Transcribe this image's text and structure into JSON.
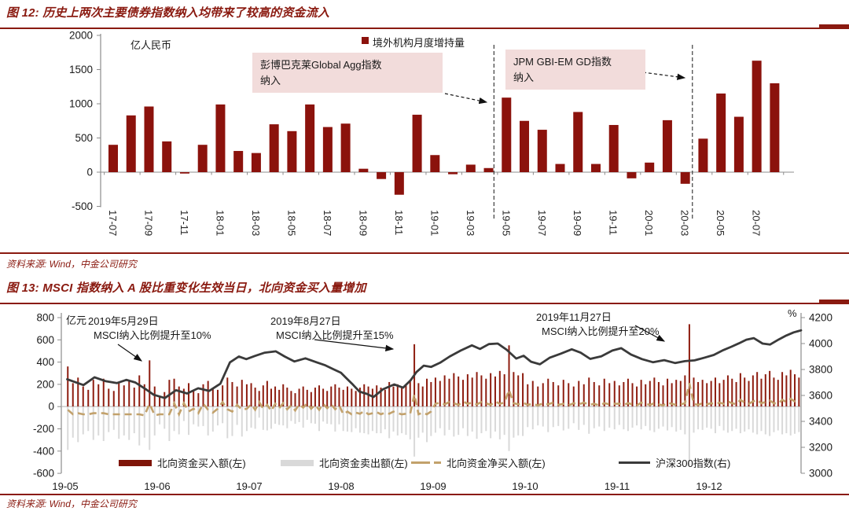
{
  "colors": {
    "accent_red": "#8a1a10",
    "bar_red": "#8b120c",
    "buy_red": "#8e1d10",
    "sell_gray": "#d9d9d9",
    "net_tan": "#c2a16b",
    "index_line": "#3a3a3a",
    "annotation_bg": "#f2dcdb",
    "axis_gray": "#8c8c8c",
    "text_dark": "#1a1a1a"
  },
  "chart_data": [
    {
      "type": "bar",
      "title": "图 12: 历史上两次主要债券指数纳入均带来了较高的资金流入",
      "unit": "亿人民币",
      "legend_label": "境外机构月度增持量",
      "source": "资料来源: Wind，中金公司研究",
      "ylim": [
        -500,
        2000
      ],
      "y_ticks": [
        2000,
        1500,
        1000,
        500,
        0,
        -500
      ],
      "categories": [
        "17-07",
        "17-08",
        "17-09",
        "17-10",
        "17-11",
        "17-12",
        "18-01",
        "18-02",
        "18-03",
        "18-04",
        "18-05",
        "18-06",
        "18-07",
        "18-08",
        "18-09",
        "18-10",
        "18-11",
        "18-12",
        "19-01",
        "19-02",
        "19-03",
        "19-04",
        "19-05",
        "19-06",
        "19-07",
        "19-08",
        "19-09",
        "19-10",
        "19-11",
        "19-12",
        "20-01",
        "20-02",
        "20-03",
        "20-04",
        "20-05",
        "20-06",
        "20-07",
        "20-08"
      ],
      "values": [
        400,
        830,
        960,
        450,
        -20,
        400,
        990,
        310,
        280,
        700,
        600,
        990,
        660,
        710,
        50,
        -100,
        -330,
        840,
        250,
        -30,
        110,
        60,
        1090,
        750,
        620,
        120,
        880,
        120,
        690,
        -90,
        140,
        760,
        -170,
        490,
        1150,
        810,
        1630,
        1300
      ],
      "event_line_index": [
        21.3,
        32.4
      ],
      "annotations": [
        {
          "line1": "彭博巴克莱Global Agg指数",
          "line2": "纳入"
        },
        {
          "line1": "JPM GBI-EM GD指数",
          "line2": "纳入"
        }
      ]
    },
    {
      "type": "combo",
      "title": "图 13: MSCI 指数纳入 A 股比重变化生效当日，北向资金买入量增加",
      "unit_left": "亿元",
      "unit_right": "%",
      "source": "资料来源: Wind，中金公司研究",
      "left_ylim": [
        -600,
        800
      ],
      "right_ylim": [
        3000,
        4200
      ],
      "left_ticks": [
        800,
        600,
        400,
        200,
        0,
        -200,
        -400,
        -600
      ],
      "right_ticks": [
        4200,
        4000,
        3800,
        3600,
        3400,
        3200,
        3000
      ],
      "x_tick_labels": [
        "19-05",
        "19-06",
        "19-07",
        "19-08",
        "19-09",
        "19-10",
        "19-11",
        "19-12"
      ],
      "month_trading_days": [
        18,
        19,
        23,
        22,
        20,
        18,
        21,
        22
      ],
      "legend": [
        {
          "label": "北向资金买入额(左)",
          "style": "bar",
          "color": "#7f1508"
        },
        {
          "label": "北向资金卖出额(左)",
          "style": "bar",
          "color": "#d9d9d9"
        },
        {
          "label": "北向资金净买入额(左)",
          "style": "dash",
          "color": "#c2a16b"
        },
        {
          "label": "沪深300指数(右)",
          "style": "line",
          "color": "#3a3a3a"
        }
      ],
      "annotations": [
        {
          "line1": "2019年5月29日",
          "line2": "MSCI纳入比例提升至10%"
        },
        {
          "line1": "2019年8月27日",
          "line2": "MSCI纳入比例提升至15%"
        },
        {
          "line1": "2019年11月27日",
          "line2": "MSCI纳入比例提升至20%"
        }
      ],
      "series": {
        "buy": [
          360,
          210,
          260,
          180,
          150,
          240,
          200,
          250,
          160,
          140,
          220,
          190,
          230,
          170,
          280,
          200,
          415,
          180,
          90,
          130,
          240,
          250,
          180,
          160,
          210,
          140,
          120,
          200,
          230,
          170,
          150,
          190,
          260,
          220,
          180,
          240,
          200,
          210,
          170,
          140,
          190,
          230,
          160,
          180,
          150,
          200,
          170,
          140,
          120,
          160,
          180,
          150,
          130,
          170,
          190,
          160,
          140,
          180,
          200,
          170,
          150,
          180,
          160,
          140,
          170,
          200,
          180,
          160,
          190,
          170,
          150,
          220,
          180,
          200,
          170,
          190,
          230,
          560,
          210,
          180,
          250,
          220,
          260,
          230,
          280,
          250,
          300,
          270,
          240,
          290,
          260,
          310,
          280,
          250,
          300,
          270,
          320,
          290,
          550,
          310,
          280,
          300,
          200,
          230,
          180,
          210,
          250,
          220,
          190,
          240,
          210,
          180,
          230,
          200,
          260,
          220,
          190,
          250,
          210,
          230,
          190,
          220,
          250,
          210,
          180,
          240,
          200,
          230,
          260,
          220,
          190,
          250,
          210,
          240,
          230,
          280,
          740,
          260,
          220,
          240,
          210,
          230,
          260,
          210,
          240,
          280,
          250,
          220,
          300,
          260,
          230,
          280,
          310,
          250,
          290,
          320,
          260,
          240,
          310,
          280,
          330,
          290,
          260
        ],
        "sell": [
          -390,
          -280,
          -320,
          -250,
          -220,
          -300,
          -260,
          -310,
          -230,
          -210,
          -290,
          -260,
          -300,
          -240,
          -350,
          -280,
          -390,
          -260,
          -160,
          -200,
          -310,
          -220,
          -250,
          -130,
          -255,
          -160,
          -180,
          -175,
          -260,
          -225,
          -170,
          -150,
          -285,
          -265,
          -165,
          -270,
          -220,
          -190,
          -200,
          -100,
          -210,
          -215,
          -200,
          -155,
          -165,
          -170,
          -195,
          -130,
          -155,
          -140,
          -190,
          -120,
          -150,
          -155,
          -220,
          -135,
          -155,
          -160,
          -225,
          -160,
          -220,
          -225,
          -230,
          -195,
          -235,
          -240,
          -250,
          -220,
          -240,
          -240,
          -205,
          -285,
          -225,
          -260,
          -240,
          -255,
          -295,
          -450,
          -280,
          -235,
          -320,
          -265,
          -235,
          -195,
          -260,
          -210,
          -270,
          -255,
          -195,
          -265,
          -225,
          -290,
          -240,
          -220,
          -285,
          -225,
          -295,
          -255,
          -400,
          -280,
          -260,
          -265,
          -185,
          -205,
          -170,
          -180,
          -230,
          -185,
          -175,
          -215,
          -200,
          -150,
          -210,
          -165,
          -245,
          -195,
          -180,
          -220,
          -190,
          -205,
          -165,
          -205,
          -220,
          -190,
          -170,
          -205,
          -175,
          -215,
          -230,
          -200,
          -180,
          -215,
          -185,
          -225,
          -210,
          -250,
          -530,
          -235,
          -205,
          -210,
          -190,
          -200,
          -240,
          -175,
          -215,
          -235,
          -220,
          -200,
          -240,
          -225,
          -205,
          -235,
          -250,
          -220,
          -250,
          -265,
          -230,
          -215,
          -250,
          -240,
          -260,
          -245,
          -230
        ],
        "net": [
          -30,
          -70,
          -60,
          -70,
          -70,
          -60,
          -60,
          -60,
          -70,
          -70,
          -70,
          -70,
          -70,
          -70,
          -70,
          -80,
          25,
          -80,
          -70,
          -70,
          -70,
          30,
          -70,
          30,
          -45,
          -20,
          -60,
          25,
          -30,
          -55,
          -20,
          40,
          -25,
          -45,
          15,
          -30,
          -20,
          20,
          -30,
          40,
          -20,
          15,
          -40,
          25,
          -15,
          30,
          -25,
          10,
          -35,
          20,
          -10,
          30,
          -20,
          15,
          -30,
          25,
          -15,
          20,
          -25,
          10,
          -70,
          -45,
          -70,
          -55,
          -65,
          -40,
          -70,
          -60,
          -50,
          -70,
          -55,
          -65,
          -45,
          -60,
          -70,
          -65,
          -65,
          110,
          -70,
          -55,
          -70,
          -45,
          25,
          35,
          20,
          40,
          30,
          15,
          45,
          25,
          35,
          20,
          40,
          30,
          15,
          45,
          25,
          35,
          150,
          30,
          20,
          35,
          15,
          25,
          10,
          30,
          20,
          35,
          15,
          25,
          10,
          30,
          20,
          35,
          15,
          25,
          10,
          30,
          20,
          25,
          25,
          15,
          30,
          20,
          10,
          35,
          25,
          15,
          30,
          20,
          10,
          35,
          25,
          15,
          20,
          30,
          210,
          25,
          15,
          30,
          20,
          30,
          20,
          35,
          25,
          45,
          30,
          20,
          60,
          35,
          25,
          45,
          60,
          30,
          40,
          55,
          30,
          25,
          60,
          40,
          70,
          45,
          30
        ]
      },
      "csi300_keypoints": [
        [
          0.008,
          3725
        ],
        [
          0.03,
          3680
        ],
        [
          0.045,
          3740
        ],
        [
          0.06,
          3710
        ],
        [
          0.075,
          3695
        ],
        [
          0.088,
          3720
        ],
        [
          0.1,
          3700
        ],
        [
          0.115,
          3645
        ],
        [
          0.125,
          3605
        ],
        [
          0.14,
          3580
        ],
        [
          0.155,
          3640
        ],
        [
          0.17,
          3615
        ],
        [
          0.185,
          3655
        ],
        [
          0.2,
          3635
        ],
        [
          0.215,
          3690
        ],
        [
          0.228,
          3855
        ],
        [
          0.24,
          3900
        ],
        [
          0.25,
          3880
        ],
        [
          0.262,
          3905
        ],
        [
          0.275,
          3930
        ],
        [
          0.29,
          3940
        ],
        [
          0.302,
          3900
        ],
        [
          0.315,
          3862
        ],
        [
          0.33,
          3886
        ],
        [
          0.345,
          3856
        ],
        [
          0.357,
          3832
        ],
        [
          0.368,
          3802
        ],
        [
          0.378,
          3775
        ],
        [
          0.385,
          3735
        ],
        [
          0.393,
          3690
        ],
        [
          0.403,
          3630
        ],
        [
          0.413,
          3612
        ],
        [
          0.422,
          3588
        ],
        [
          0.435,
          3648
        ],
        [
          0.45,
          3685
        ],
        [
          0.462,
          3660
        ],
        [
          0.472,
          3716
        ],
        [
          0.48,
          3780
        ],
        [
          0.49,
          3830
        ],
        [
          0.5,
          3820
        ],
        [
          0.512,
          3852
        ],
        [
          0.525,
          3900
        ],
        [
          0.54,
          3946
        ],
        [
          0.555,
          3986
        ],
        [
          0.566,
          3958
        ],
        [
          0.578,
          3996
        ],
        [
          0.59,
          4000
        ],
        [
          0.602,
          3952
        ],
        [
          0.615,
          3884
        ],
        [
          0.625,
          3906
        ],
        [
          0.635,
          3860
        ],
        [
          0.647,
          3840
        ],
        [
          0.66,
          3890
        ],
        [
          0.675,
          3922
        ],
        [
          0.69,
          3956
        ],
        [
          0.702,
          3930
        ],
        [
          0.715,
          3882
        ],
        [
          0.73,
          3902
        ],
        [
          0.745,
          3946
        ],
        [
          0.757,
          3964
        ],
        [
          0.77,
          3916
        ],
        [
          0.785,
          3880
        ],
        [
          0.8,
          3856
        ],
        [
          0.815,
          3872
        ],
        [
          0.83,
          3850
        ],
        [
          0.843,
          3864
        ],
        [
          0.856,
          3870
        ],
        [
          0.87,
          3892
        ],
        [
          0.882,
          3912
        ],
        [
          0.895,
          3950
        ],
        [
          0.906,
          3976
        ],
        [
          0.916,
          4002
        ],
        [
          0.926,
          4030
        ],
        [
          0.936,
          4042
        ],
        [
          0.948,
          4000
        ],
        [
          0.958,
          3992
        ],
        [
          0.97,
          4032
        ],
        [
          0.98,
          4062
        ],
        [
          0.99,
          4086
        ],
        [
          1.0,
          4102
        ]
      ]
    }
  ]
}
